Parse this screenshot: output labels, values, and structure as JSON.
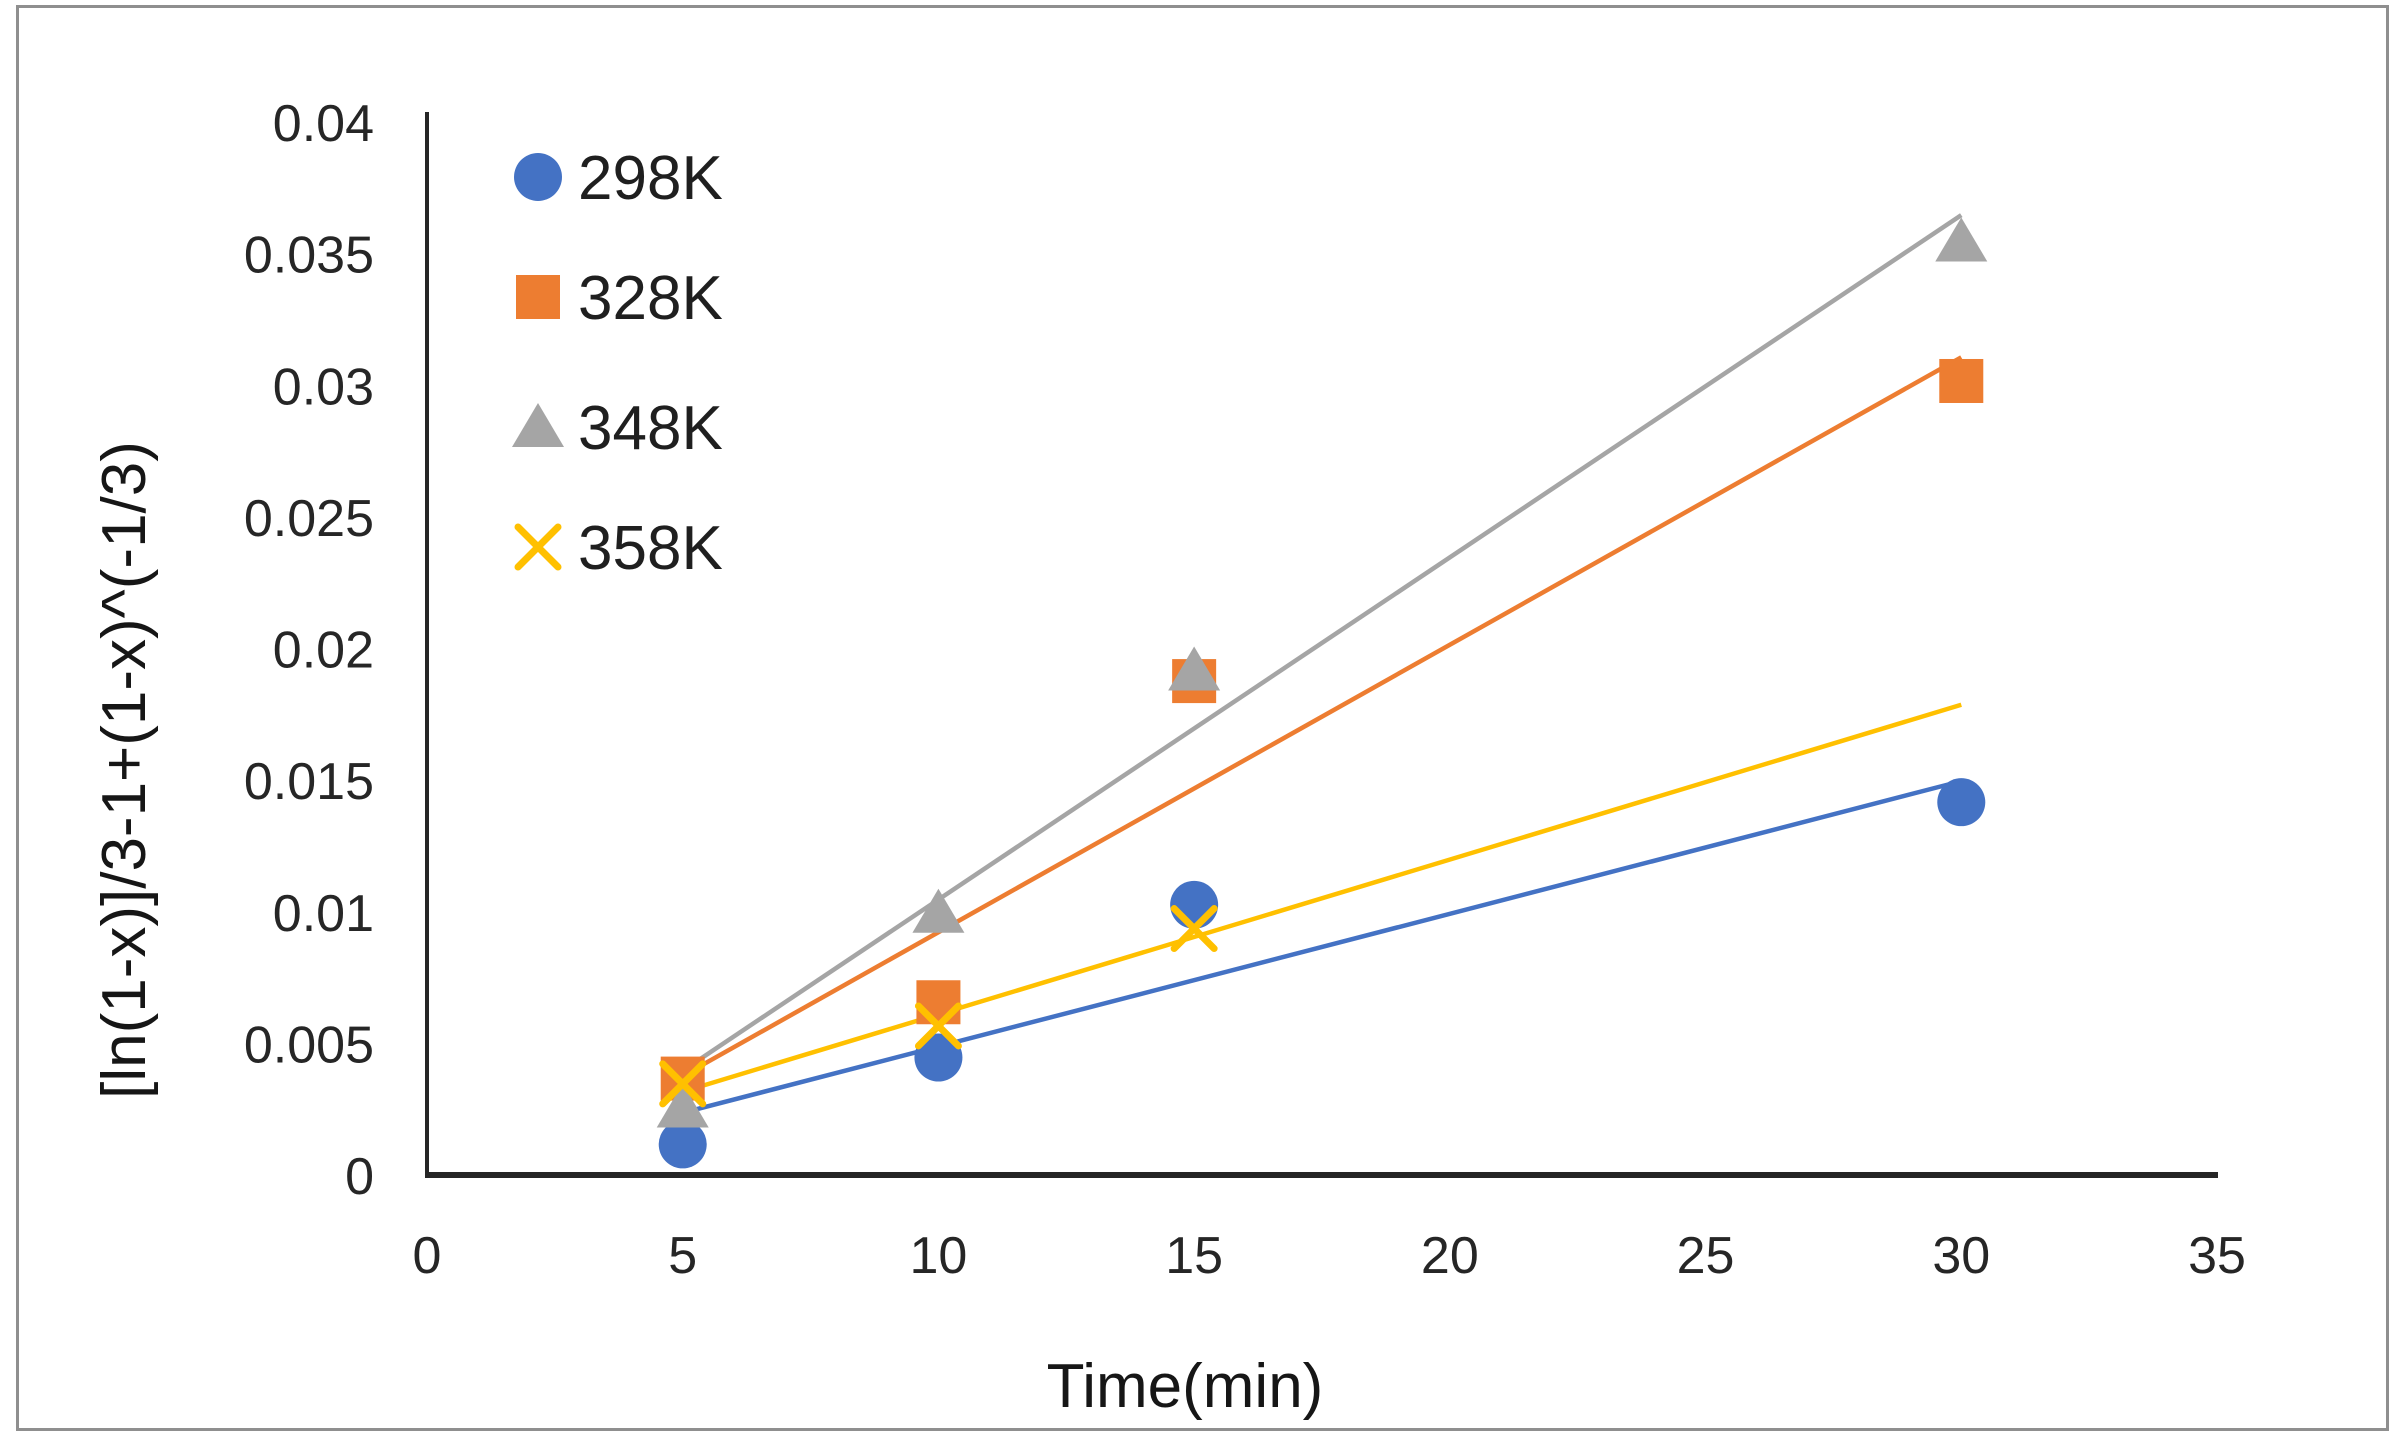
{
  "figure": {
    "kind": "excel-style scatter chart with linear trendlines",
    "border_color": "#8f8f8f",
    "background": "#ffffff"
  },
  "chart_data": {
    "type": "scatter",
    "title": "",
    "xlabel": "Time(min)",
    "ylabel": "[ln(1-x)]/3-1+(1-x)^(-1/3)",
    "xlim": [
      0,
      35
    ],
    "ylim": [
      0,
      0.04
    ],
    "xticks": [
      0,
      5,
      10,
      15,
      20,
      25,
      30,
      35
    ],
    "xtick_labels": [
      "0",
      "5",
      "10",
      "15",
      "20",
      "25",
      "30",
      "35"
    ],
    "yticks": [
      0,
      0.005,
      0.01,
      0.015,
      0.02,
      0.025,
      0.03,
      0.035,
      0.04
    ],
    "ytick_labels": [
      "0",
      "0.005",
      "0.01",
      "0.015",
      "0.02",
      "0.025",
      "0.03",
      "0.035",
      "0.04"
    ],
    "grid": false,
    "legend_position": "top-left-inside",
    "axis_color": "#262626",
    "series": [
      {
        "name": "298K",
        "marker": "circle",
        "color": "#4472C4",
        "x": [
          5,
          10,
          15,
          30
        ],
        "y": [
          0.0012,
          0.0045,
          0.0103,
          0.0142
        ],
        "trendline": {
          "x": [
            5,
            30
          ],
          "y": [
            0.0024,
            0.015
          ]
        }
      },
      {
        "name": "328K",
        "marker": "square",
        "color": "#ED7D31",
        "x": [
          5,
          10,
          15,
          30
        ],
        "y": [
          0.0037,
          0.0066,
          0.0188,
          0.0302
        ],
        "trendline": {
          "x": [
            5,
            30
          ],
          "y": [
            0.0038,
            0.0311
          ]
        }
      },
      {
        "name": "348K",
        "marker": "triangle",
        "color": "#A5A5A5",
        "x": [
          5,
          10,
          15,
          30
        ],
        "y": [
          0.0026,
          0.01,
          0.0192,
          0.0355
        ],
        "trendline": {
          "x": [
            5,
            30
          ],
          "y": [
            0.004,
            0.0365
          ]
        }
      },
      {
        "name": "358K",
        "marker": "x",
        "color": "#FFC000",
        "x": [
          5,
          10,
          15
        ],
        "y": [
          0.0035,
          0.0057,
          0.0094
        ],
        "trendline": {
          "x": [
            5,
            30
          ],
          "y": [
            0.0032,
            0.0179
          ]
        }
      }
    ]
  }
}
